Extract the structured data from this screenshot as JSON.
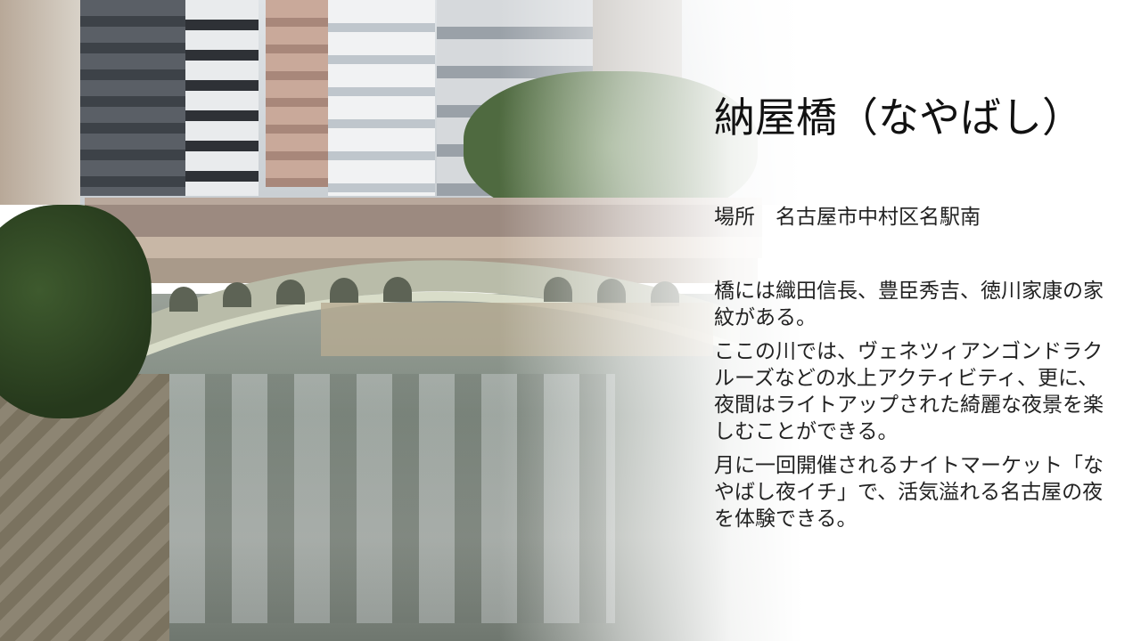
{
  "slide": {
    "title": "納屋橋（なやばし）",
    "location": "場所　名古屋市中村区名駅南",
    "paragraphs": [
      "橋には織田信長、豊臣秀吉、徳川家康の家紋がある。",
      "ここの川では、ヴェネツィアンゴンドラクルーズなどの水上アクティビティ、更に、夜間はライトアップされた綺麗な夜景を楽しむことができる。",
      "月に一回開催されるナイトマーケット「なやばし夜イチ」で、活気溢れる名古屋の夜を体験できる。"
    ]
  }
}
